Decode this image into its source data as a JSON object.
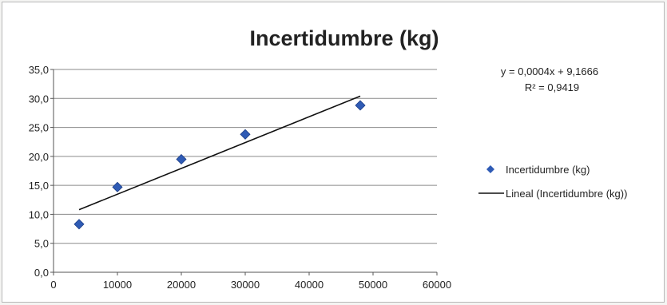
{
  "chart_data": {
    "type": "scatter",
    "title": "Incertidumbre (kg)",
    "xlim": [
      0,
      60000
    ],
    "ylim": [
      0,
      35
    ],
    "x_ticks": [
      "0",
      "10000",
      "20000",
      "30000",
      "40000",
      "50000",
      "60000"
    ],
    "y_ticks": [
      "0,0",
      "5,0",
      "10,0",
      "15,0",
      "20,0",
      "25,0",
      "30,0",
      "35,0"
    ],
    "grid": true,
    "legend_position": "right",
    "series": [
      {
        "name": "Incertidumbre (kg)",
        "type": "scatter",
        "marker": "diamond",
        "color": "#2f5bb5",
        "x": [
          4000,
          10000,
          20000,
          30000,
          48000
        ],
        "y": [
          8.3,
          14.7,
          19.5,
          23.8,
          28.8
        ]
      },
      {
        "name": "Lineal (Incertidumbre (kg))",
        "type": "line",
        "color": "#111111",
        "x": [
          4000,
          48000
        ],
        "y": [
          10.8,
          30.4
        ]
      }
    ],
    "trendline_equation": "y = 0,0004x + 9,1666",
    "r_squared": "R² = 0,9419"
  }
}
